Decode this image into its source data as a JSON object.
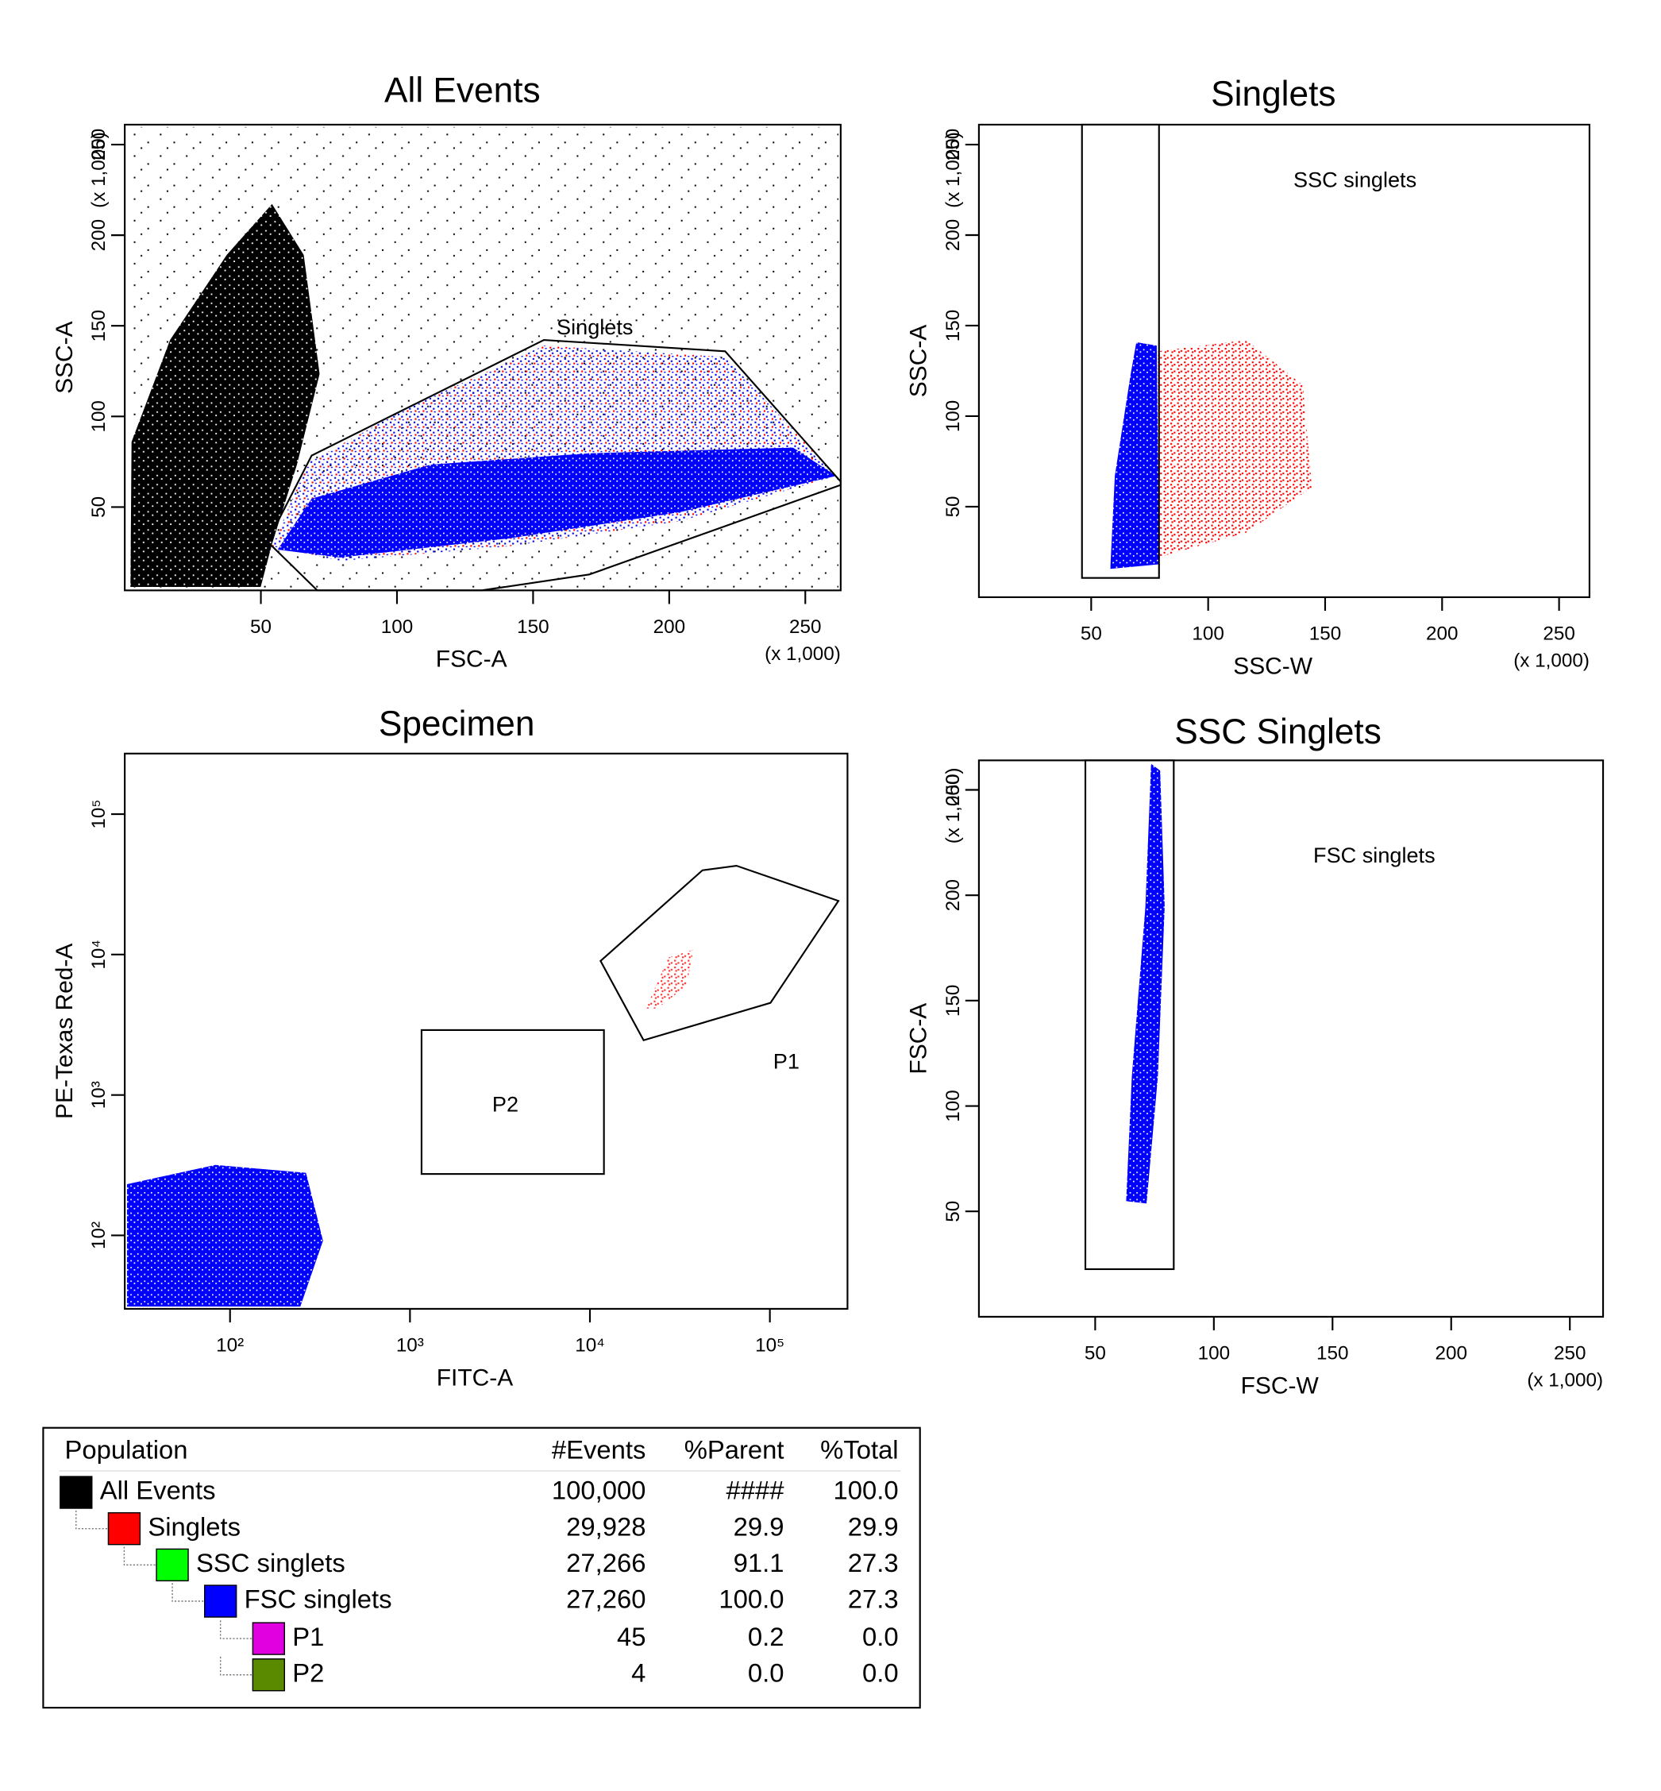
{
  "chart_data": [
    {
      "type": "scatter",
      "title": "All Events",
      "xlabel": "FSC-A",
      "ylabel": "SSC-A",
      "x_multiplier": "(x 1,000)",
      "y_multiplier": "(x 1,000)",
      "xlim": [
        0,
        263
      ],
      "ylim": [
        4,
        261
      ],
      "xticks": [
        50,
        100,
        150,
        200,
        250
      ],
      "yticks": [
        50,
        100,
        150,
        200,
        250
      ],
      "gates": [
        {
          "label": "Singlets"
        }
      ]
    },
    {
      "type": "scatter",
      "title": "Singlets",
      "xlabel": "SSC-W",
      "ylabel": "SSC-A",
      "x_multiplier": "(x 1,000)",
      "y_multiplier": "(x 1,000)",
      "xlim": [
        2,
        263
      ],
      "ylim": [
        0,
        261
      ],
      "xticks": [
        50,
        100,
        150,
        200,
        250
      ],
      "yticks": [
        50,
        100,
        150,
        200,
        250
      ],
      "gates": [
        {
          "label": "SSC singlets"
        }
      ]
    },
    {
      "type": "scatter",
      "title": "Specimen",
      "xlabel": "FITC-A",
      "ylabel": "PE-Texas Red-A",
      "log": true,
      "xlim": [
        26,
        270000
      ],
      "ylim": [
        30,
        270000
      ],
      "xticks": [
        {
          "value": 100,
          "label": "10²"
        },
        {
          "value": 1000,
          "label": "10³"
        },
        {
          "value": 10000,
          "label": "10⁴"
        },
        {
          "value": 100000,
          "label": "10⁵"
        }
      ],
      "yticks": [
        {
          "value": 100,
          "label": "10²"
        },
        {
          "value": 1000,
          "label": "10³"
        },
        {
          "value": 10000,
          "label": "10⁴"
        },
        {
          "value": 100000,
          "label": "10⁵"
        }
      ],
      "gates": [
        {
          "label": "P1"
        },
        {
          "label": "P2"
        }
      ]
    },
    {
      "type": "scatter",
      "title": "SSC Singlets",
      "xlabel": "FSC-W",
      "ylabel": "FSC-A",
      "x_multiplier": "(x 1,000)",
      "y_multiplier": "(x 1,000)",
      "xlim": [
        1,
        264
      ],
      "ylim": [
        0,
        264
      ],
      "xticks": [
        50,
        100,
        150,
        200,
        250
      ],
      "yticks": [
        50,
        100,
        150,
        200,
        250
      ],
      "gates": [
        {
          "label": "FSC singlets"
        }
      ]
    }
  ],
  "population_table": {
    "columns": [
      "Population",
      "#Events",
      "%Parent",
      "%Total"
    ],
    "rows": [
      {
        "name": "All Events",
        "color": "#000000",
        "level": 0,
        "cells": [
          "100,000",
          "####",
          "100.0"
        ]
      },
      {
        "name": "Singlets",
        "color": "#ff0000",
        "level": 1,
        "cells": [
          "29,928",
          "29.9",
          "29.9"
        ]
      },
      {
        "name": "SSC singlets",
        "color": "#00ff00",
        "level": 2,
        "cells": [
          "27,266",
          "91.1",
          "27.3"
        ]
      },
      {
        "name": "FSC singlets",
        "color": "#0000ff",
        "level": 3,
        "cells": [
          "27,260",
          "100.0",
          "27.3"
        ]
      },
      {
        "name": "P1",
        "color": "#e000e0",
        "level": 4,
        "cells": [
          "45",
          "0.2",
          "0.0"
        ]
      },
      {
        "name": "P2",
        "color": "#5a8a00",
        "level": 4,
        "cells": [
          "4",
          "0.0",
          "0.0"
        ]
      }
    ]
  }
}
